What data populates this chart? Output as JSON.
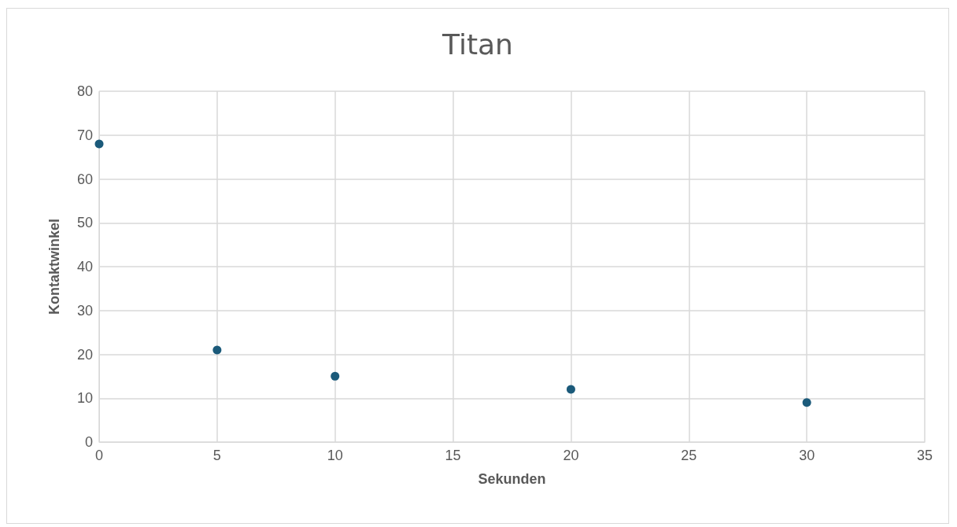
{
  "chart_data": {
    "type": "scatter",
    "title": "Titan",
    "xlabel": "Sekunden",
    "ylabel": "Kontaktwinkel",
    "x": [
      0,
      5,
      10,
      20,
      30
    ],
    "series": [
      {
        "color": "#1b5a7a",
        "values": [
          68,
          21,
          15,
          12,
          9
        ]
      }
    ],
    "xlim": [
      0,
      35
    ],
    "xticks": [
      0,
      5,
      10,
      15,
      20,
      25,
      30,
      35
    ],
    "ylim": [
      0,
      80
    ],
    "yticks": [
      0,
      10,
      20,
      30,
      40,
      50,
      60,
      70,
      80
    ],
    "grid": true,
    "marker": "circle"
  }
}
